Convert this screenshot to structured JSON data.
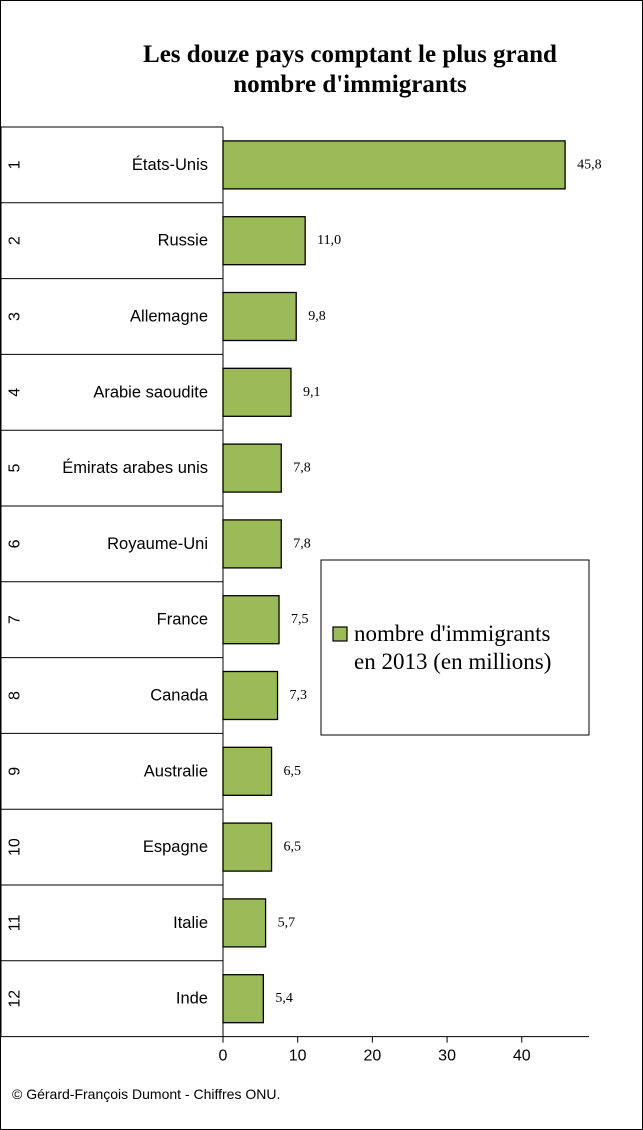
{
  "chart_data": {
    "type": "bar",
    "orientation": "horizontal",
    "title_lines": [
      "Les douze pays comptant le plus grand",
      "nombre d'immigrants"
    ],
    "ranks": [
      "1",
      "2",
      "3",
      "4",
      "5",
      "6",
      "7",
      "8",
      "9",
      "10",
      "11",
      "12"
    ],
    "categories": [
      "États-Unis",
      "Russie",
      "Allemagne",
      "Arabie saoudite",
      "Émirats arabes unis",
      "Royaume-Uni",
      "France",
      "Canada",
      "Australie",
      "Espagne",
      "Italie",
      "Inde"
    ],
    "value_labels": [
      "45,8",
      "11,0",
      "9,8",
      "9,1",
      "7,8",
      "7,8",
      "7,5",
      "7,3",
      "6,5",
      "6,5",
      "5,7",
      "5,4"
    ],
    "series": [
      {
        "name": "nombre d'immigrants en 2013 (en millions)",
        "values": [
          45.8,
          11.0,
          9.8,
          9.1,
          7.8,
          7.8,
          7.5,
          7.3,
          6.5,
          6.5,
          5.7,
          5.4
        ],
        "color": "#9bbb59"
      }
    ],
    "legend_lines": [
      "nombre d'immigrants",
      "en 2013 (en millions)"
    ],
    "legend_placement": "center-right",
    "xlim": [
      0,
      49
    ],
    "xticks": [
      0,
      10,
      20,
      30,
      40
    ],
    "grid": false
  },
  "source": "© Gérard-François Dumont - Chiffres ONU."
}
